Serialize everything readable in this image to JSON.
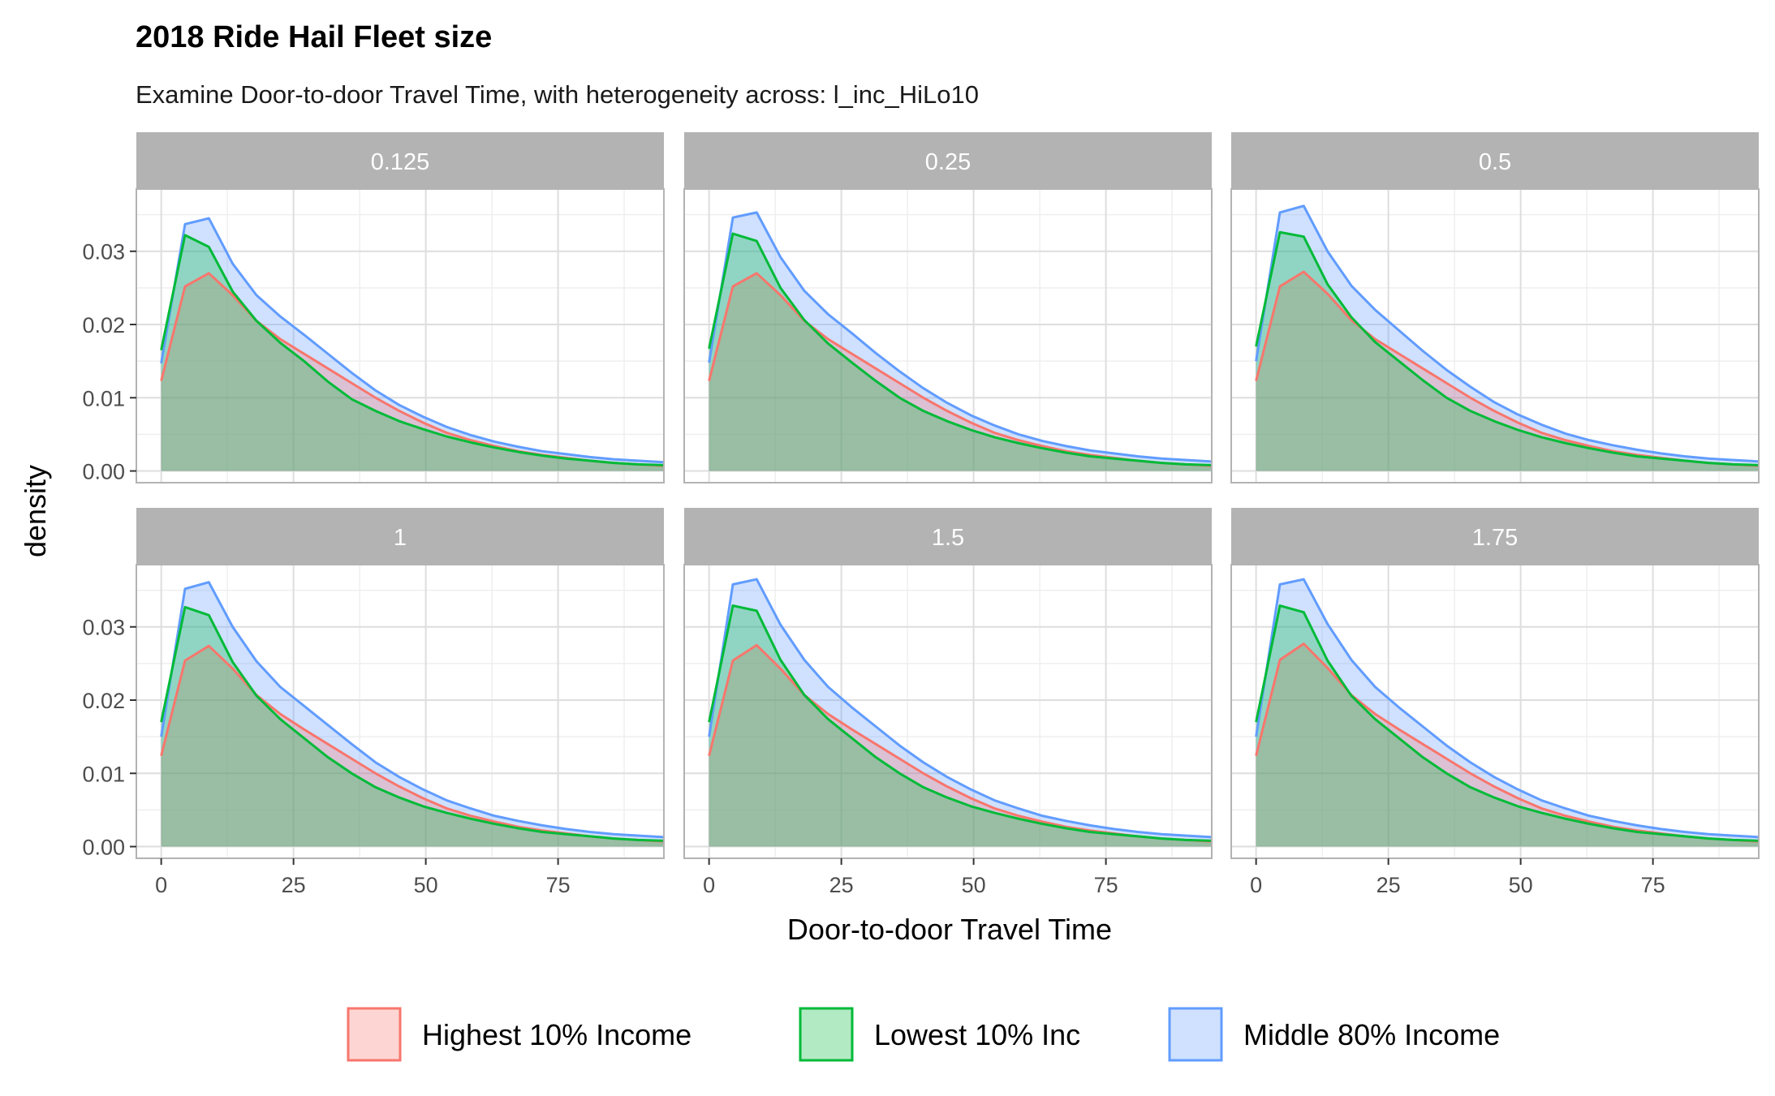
{
  "chart_data": {
    "type": "area",
    "title": "2018 Ride Hail Fleet size",
    "subtitle": "Examine Door-to-door Travel Time, with heterogeneity across: l_inc_HiLo10",
    "xlabel": "Door-to-door Travel Time",
    "ylabel": "density",
    "xlim": [
      -4.7,
      95
    ],
    "ylim": [
      -0.0016,
      0.0385
    ],
    "x_ticks": [
      "0",
      "25",
      "50",
      "75"
    ],
    "x_tick_values": [
      0,
      25,
      50,
      75
    ],
    "y_ticks": [
      "0.00",
      "0.01",
      "0.02",
      "0.03"
    ],
    "y_tick_values": [
      0,
      0.01,
      0.02,
      0.03
    ],
    "grid": true,
    "legend_position": "bottom",
    "x": [
      0,
      4.5,
      9,
      13.5,
      18,
      22.5,
      27,
      31.5,
      36,
      40.5,
      45,
      49.5,
      54,
      58.5,
      63,
      67.5,
      72,
      76.5,
      81,
      85.5,
      90,
      95
    ],
    "series_styles": [
      {
        "name": "Highest 10% Income",
        "line": "#F8766D",
        "fill": "#F8766D"
      },
      {
        "name": "Lowest 10% Inc",
        "line": "#00BA38",
        "fill": "#00BA38"
      },
      {
        "name": "Middle 80% Income",
        "line": "#619CFF",
        "fill": "#619CFF"
      }
    ],
    "panels": [
      {
        "label": "0.125",
        "series": [
          {
            "name": "Highest 10% Income",
            "values": [
              0.0123,
              0.0252,
              0.027,
              0.024,
              0.0205,
              0.018,
              0.016,
              0.014,
              0.012,
              0.01,
              0.0082,
              0.0066,
              0.0052,
              0.0042,
              0.0034,
              0.0027,
              0.0022,
              0.0018,
              0.0014,
              0.0011,
              0.0009,
              0.0007
            ]
          },
          {
            "name": "Lowest 10% Inc",
            "values": [
              0.0165,
              0.0322,
              0.0306,
              0.0245,
              0.0205,
              0.0175,
              0.015,
              0.0122,
              0.0098,
              0.0082,
              0.0068,
              0.0057,
              0.0047,
              0.0039,
              0.0032,
              0.0026,
              0.0021,
              0.0017,
              0.0014,
              0.0011,
              0.0009,
              0.0008
            ]
          },
          {
            "name": "Middle 80% Income",
            "values": [
              0.0147,
              0.0337,
              0.0345,
              0.0283,
              0.024,
              0.0211,
              0.0186,
              0.016,
              0.0134,
              0.011,
              0.009,
              0.0074,
              0.006,
              0.0049,
              0.004,
              0.0033,
              0.0027,
              0.0023,
              0.0019,
              0.0016,
              0.0014,
              0.0012
            ]
          }
        ]
      },
      {
        "label": "0.25",
        "series": [
          {
            "name": "Highest 10% Income",
            "values": [
              0.0123,
              0.0252,
              0.027,
              0.024,
              0.0205,
              0.018,
              0.016,
              0.014,
              0.012,
              0.01,
              0.0082,
              0.0066,
              0.0052,
              0.0042,
              0.0034,
              0.0027,
              0.0022,
              0.0018,
              0.0014,
              0.0011,
              0.0009,
              0.0007
            ]
          },
          {
            "name": "Lowest 10% Inc",
            "values": [
              0.0167,
              0.0324,
              0.0314,
              0.025,
              0.0206,
              0.0174,
              0.0148,
              0.0123,
              0.01,
              0.0082,
              0.0068,
              0.0056,
              0.0046,
              0.0038,
              0.0031,
              0.0025,
              0.002,
              0.0017,
              0.0014,
              0.0011,
              0.0009,
              0.0008
            ]
          },
          {
            "name": "Middle 80% Income",
            "values": [
              0.0148,
              0.0346,
              0.0353,
              0.0292,
              0.0246,
              0.0214,
              0.0188,
              0.0161,
              0.0136,
              0.0113,
              0.0093,
              0.0076,
              0.0062,
              0.005,
              0.0041,
              0.0034,
              0.0028,
              0.0024,
              0.002,
              0.0017,
              0.0015,
              0.0013
            ]
          }
        ]
      },
      {
        "label": "0.5",
        "series": [
          {
            "name": "Highest 10% Income",
            "values": [
              0.0123,
              0.0252,
              0.0272,
              0.0242,
              0.0206,
              0.018,
              0.016,
              0.014,
              0.012,
              0.01,
              0.0082,
              0.0066,
              0.0052,
              0.0042,
              0.0034,
              0.0027,
              0.0022,
              0.0018,
              0.0014,
              0.0011,
              0.0009,
              0.0007
            ]
          },
          {
            "name": "Lowest 10% Inc",
            "values": [
              0.017,
              0.0326,
              0.032,
              0.0255,
              0.021,
              0.0176,
              0.015,
              0.0124,
              0.01,
              0.0082,
              0.0068,
              0.0056,
              0.0046,
              0.0038,
              0.0031,
              0.0025,
              0.002,
              0.0017,
              0.0014,
              0.0011,
              0.0009,
              0.0008
            ]
          },
          {
            "name": "Middle 80% Income",
            "values": [
              0.015,
              0.0353,
              0.0362,
              0.03,
              0.0253,
              0.022,
              0.0192,
              0.0164,
              0.0138,
              0.0115,
              0.0094,
              0.0077,
              0.0063,
              0.0051,
              0.0042,
              0.0035,
              0.0029,
              0.0024,
              0.002,
              0.0017,
              0.0015,
              0.0013
            ]
          }
        ]
      },
      {
        "label": "1",
        "series": [
          {
            "name": "Highest 10% Income",
            "values": [
              0.0124,
              0.0254,
              0.0274,
              0.0243,
              0.0207,
              0.0181,
              0.016,
              0.014,
              0.012,
              0.01,
              0.0082,
              0.0066,
              0.0052,
              0.0042,
              0.0034,
              0.0027,
              0.0022,
              0.0018,
              0.0014,
              0.0011,
              0.0009,
              0.0007
            ]
          },
          {
            "name": "Lowest 10% Inc",
            "values": [
              0.017,
              0.0327,
              0.0316,
              0.0252,
              0.0206,
              0.0174,
              0.0148,
              0.0122,
              0.01,
              0.0081,
              0.0067,
              0.0055,
              0.0046,
              0.0038,
              0.0031,
              0.0025,
              0.002,
              0.0017,
              0.0014,
              0.0011,
              0.0009,
              0.0008
            ]
          },
          {
            "name": "Middle 80% Income",
            "values": [
              0.015,
              0.0352,
              0.0361,
              0.03,
              0.0253,
              0.0218,
              0.0192,
              0.0166,
              0.014,
              0.0115,
              0.0095,
              0.0078,
              0.0063,
              0.0052,
              0.0042,
              0.0035,
              0.0029,
              0.0024,
              0.002,
              0.0017,
              0.0015,
              0.0013
            ]
          }
        ]
      },
      {
        "label": "1.5",
        "series": [
          {
            "name": "Highest 10% Income",
            "values": [
              0.0124,
              0.0254,
              0.0275,
              0.0243,
              0.0207,
              0.0181,
              0.016,
              0.014,
              0.012,
              0.01,
              0.0082,
              0.0066,
              0.0052,
              0.0042,
              0.0034,
              0.0027,
              0.0022,
              0.0018,
              0.0014,
              0.0011,
              0.0009,
              0.0007
            ]
          },
          {
            "name": "Lowest 10% Inc",
            "values": [
              0.017,
              0.0329,
              0.0322,
              0.0255,
              0.0207,
              0.0174,
              0.0148,
              0.0122,
              0.01,
              0.0081,
              0.0067,
              0.0055,
              0.0046,
              0.0038,
              0.0031,
              0.0025,
              0.002,
              0.0017,
              0.0014,
              0.0011,
              0.0009,
              0.0008
            ]
          },
          {
            "name": "Middle 80% Income",
            "values": [
              0.015,
              0.0358,
              0.0365,
              0.0303,
              0.0255,
              0.0218,
              0.019,
              0.0164,
              0.0138,
              0.0115,
              0.0095,
              0.0078,
              0.0063,
              0.0052,
              0.0042,
              0.0035,
              0.0029,
              0.0024,
              0.002,
              0.0017,
              0.0015,
              0.0013
            ]
          }
        ]
      },
      {
        "label": "1.75",
        "series": [
          {
            "name": "Highest 10% Income",
            "values": [
              0.0124,
              0.0255,
              0.0277,
              0.0244,
              0.0207,
              0.0181,
              0.016,
              0.014,
              0.012,
              0.01,
              0.0082,
              0.0066,
              0.0052,
              0.0042,
              0.0034,
              0.0027,
              0.0022,
              0.0018,
              0.0014,
              0.0011,
              0.0009,
              0.0007
            ]
          },
          {
            "name": "Lowest 10% Inc",
            "values": [
              0.017,
              0.0329,
              0.032,
              0.0254,
              0.0206,
              0.0174,
              0.0148,
              0.0122,
              0.01,
              0.0081,
              0.0067,
              0.0055,
              0.0046,
              0.0038,
              0.0031,
              0.0025,
              0.002,
              0.0017,
              0.0014,
              0.0011,
              0.0009,
              0.0008
            ]
          },
          {
            "name": "Middle 80% Income",
            "values": [
              0.015,
              0.0358,
              0.0365,
              0.0304,
              0.0255,
              0.0218,
              0.019,
              0.0164,
              0.0138,
              0.0115,
              0.0095,
              0.0078,
              0.0063,
              0.0052,
              0.0042,
              0.0035,
              0.0029,
              0.0024,
              0.002,
              0.0017,
              0.0015,
              0.0013
            ]
          }
        ]
      }
    ]
  },
  "colors": {
    "strip_background": "#B3B3B3",
    "panel_border": "#B3B3B3",
    "grid_major": "#DEDEDE",
    "grid_minor": "#EFEFEF",
    "fill_opacity": 0.3
  }
}
